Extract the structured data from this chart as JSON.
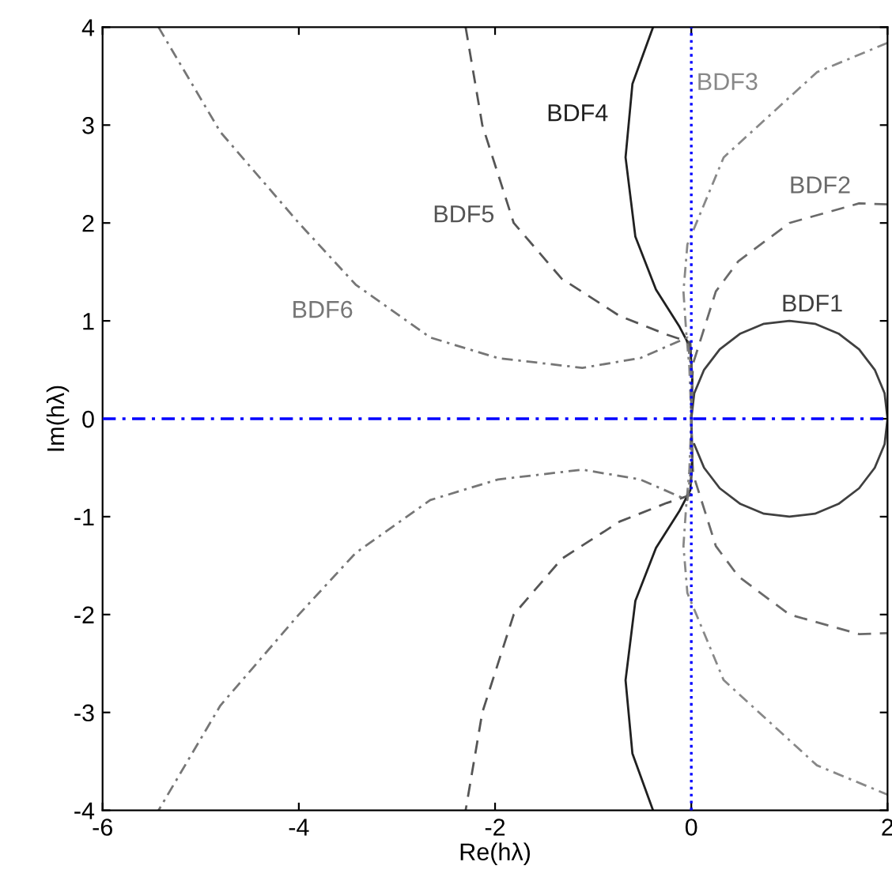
{
  "chart_data": {
    "type": "line",
    "xlabel": "Re(hλ)",
    "ylabel": "Im(hλ)",
    "xlim": [
      -6,
      2
    ],
    "ylim": [
      -4,
      4
    ],
    "xticks": [
      -6,
      -4,
      -2,
      0,
      2
    ],
    "yticks": [
      -4,
      -3,
      -2,
      -1,
      0,
      1,
      2,
      3,
      4
    ],
    "grid": false,
    "legend": false,
    "marker": "none",
    "series": [
      {
        "name": "BDF1",
        "color": "#404040",
        "line_style": "solid",
        "x": [
          0,
          0.03,
          0.13,
          0.29,
          0.5,
          0.74,
          1,
          1.26,
          1.5,
          1.71,
          1.87,
          1.97,
          2,
          1.97,
          1.87,
          1.71,
          1.5,
          1.26,
          1,
          0.74,
          0.5,
          0.29,
          0.13,
          0.03
        ],
        "values": [
          0,
          0.26,
          0.5,
          0.71,
          0.87,
          0.97,
          1,
          0.97,
          0.87,
          0.71,
          0.5,
          0.26,
          0,
          -0.26,
          -0.5,
          -0.71,
          -0.87,
          -0.97,
          -1,
          -0.97,
          -0.87,
          -0.71,
          -0.5,
          -0.26
        ]
      },
      {
        "name": "BDF2",
        "color": "#6a6a6a",
        "line_style": "dashed",
        "x": [
          2,
          1.71,
          1,
          0.48,
          0.25,
          0.02,
          0,
          0,
          0,
          0.02,
          0.25,
          0.48,
          1,
          1.71,
          2
        ],
        "values": [
          2.19,
          2.2,
          2,
          1.61,
          1.3,
          0.57,
          0.27,
          0,
          -0.27,
          -0.57,
          -1.3,
          -1.61,
          -2,
          -2.2,
          -2.19
        ]
      },
      {
        "name": "BDF3",
        "color": "#888888",
        "line_style": "dashdot",
        "x": [
          2,
          1.28,
          0.33,
          -0.04,
          -0.08,
          -0.05,
          -0.02,
          0,
          -0.02,
          -0.05,
          -0.08,
          -0.04,
          0.33,
          1.28,
          2
        ],
        "values": [
          3.84,
          3.54,
          2.67,
          1.78,
          1.3,
          0.86,
          0.53,
          0,
          -0.53,
          -0.86,
          -1.3,
          -1.78,
          -2.67,
          -3.54,
          -3.84
        ]
      },
      {
        "name": "BDF4",
        "color": "#202020",
        "line_style": "solid",
        "x": [
          -0.39,
          -0.6,
          -0.67,
          -0.57,
          -0.36,
          -0.12,
          -0.01,
          0.01,
          0,
          0.01,
          -0.01,
          -0.12,
          -0.36,
          -0.57,
          -0.67,
          -0.6,
          -0.39
        ],
        "values": [
          4,
          3.42,
          2.67,
          1.86,
          1.32,
          0.94,
          0.73,
          0.4,
          0,
          -0.4,
          -0.73,
          -0.94,
          -1.32,
          -1.86,
          -2.67,
          -3.42,
          -4
        ]
      },
      {
        "name": "BDF5",
        "color": "#555555",
        "line_style": "dashed",
        "x": [
          -2.3,
          -2.13,
          -1.81,
          -1.32,
          -0.73,
          -0.25,
          -0.01,
          0.01,
          0,
          0.01,
          -0.01,
          -0.25,
          -0.73,
          -1.32,
          -1.81,
          -2.13,
          -2.3
        ],
        "values": [
          4,
          3,
          2,
          1.43,
          1.05,
          0.86,
          0.78,
          0.4,
          0,
          -0.4,
          -0.78,
          -0.86,
          -1.05,
          -1.43,
          -2,
          -3,
          -4
        ]
      },
      {
        "name": "BDF6",
        "color": "#767676",
        "line_style": "dashdot",
        "x": [
          -5.43,
          -4.8,
          -4,
          -3.42,
          -2.66,
          -1.97,
          -1.11,
          -0.52,
          -0.04,
          0.01,
          0,
          0.01,
          -0.04,
          -0.52,
          -1.11,
          -1.97,
          -2.66,
          -3.42,
          -4,
          -4.8,
          -5.43
        ],
        "values": [
          4,
          2.93,
          2,
          1.37,
          0.83,
          0.62,
          0.52,
          0.62,
          0.83,
          0.4,
          0,
          -0.4,
          -0.83,
          -0.62,
          -0.52,
          -0.62,
          -0.83,
          -1.37,
          -2,
          -2.93,
          -4
        ]
      }
    ],
    "ref_lines": [
      {
        "axis": "x",
        "value": 0,
        "color": "#0000ff",
        "line_style": "dotted"
      },
      {
        "axis": "y",
        "value": 0,
        "color": "#0000ff",
        "line_style": "dashdot"
      }
    ]
  }
}
